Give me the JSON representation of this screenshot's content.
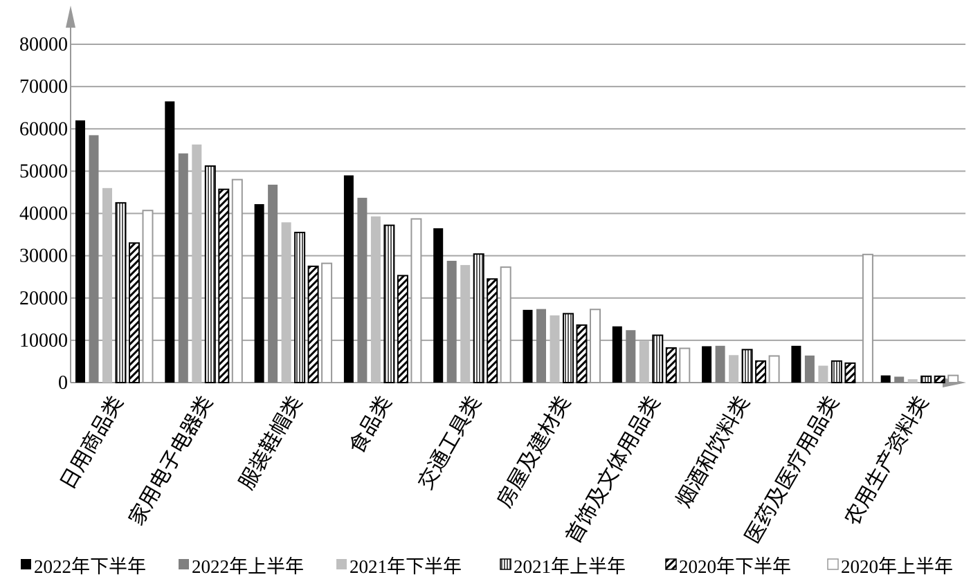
{
  "chart_data": {
    "type": "bar",
    "categories": [
      "日用商品类",
      "家用电子电器类",
      "服装鞋帽类",
      "食品类",
      "交通工具类",
      "房屋及建材类",
      "首饰及文体用品类",
      "烟酒和饮料类",
      "医药及医疗用品类",
      "农用生产资料类"
    ],
    "series": [
      {
        "name": "2022年下半年",
        "values": [
          62000,
          66500,
          42200,
          49000,
          36500,
          17200,
          13300,
          8600,
          8700,
          1700
        ]
      },
      {
        "name": "2022年上半年",
        "values": [
          58500,
          54200,
          46800,
          43700,
          28800,
          17400,
          12400,
          8700,
          6400,
          1400
        ]
      },
      {
        "name": "2021年下半年",
        "values": [
          46000,
          56300,
          37900,
          39300,
          27800,
          15900,
          9800,
          6500,
          4000,
          800
        ]
      },
      {
        "name": "2021年上半年",
        "values": [
          42500,
          51200,
          35500,
          37200,
          30400,
          16300,
          11200,
          7800,
          5100,
          1500
        ]
      },
      {
        "name": "2020年下半年",
        "values": [
          33000,
          45700,
          27500,
          25300,
          24500,
          13600,
          8200,
          5100,
          4600,
          1500
        ]
      },
      {
        "name": "2020年上半年",
        "values": [
          40700,
          48000,
          28200,
          38700,
          27300,
          17300,
          8100,
          6300,
          0,
          1700
        ]
      }
    ],
    "extra_bar": {
      "category": "医药及医疗用品类",
      "series": "2020年上半年",
      "value": 30300
    },
    "yticks": [
      "0",
      "10000",
      "20000",
      "30000",
      "40000",
      "50000",
      "60000",
      "70000",
      "80000"
    ],
    "ylim": [
      0,
      80000
    ],
    "grid": true,
    "legend": "bottom",
    "colors": {
      "axis": "#999999",
      "grid": "#a6a6a6",
      "black": "#000000",
      "dark_gray": "#808080",
      "light_gray": "#bfbfbf"
    }
  }
}
